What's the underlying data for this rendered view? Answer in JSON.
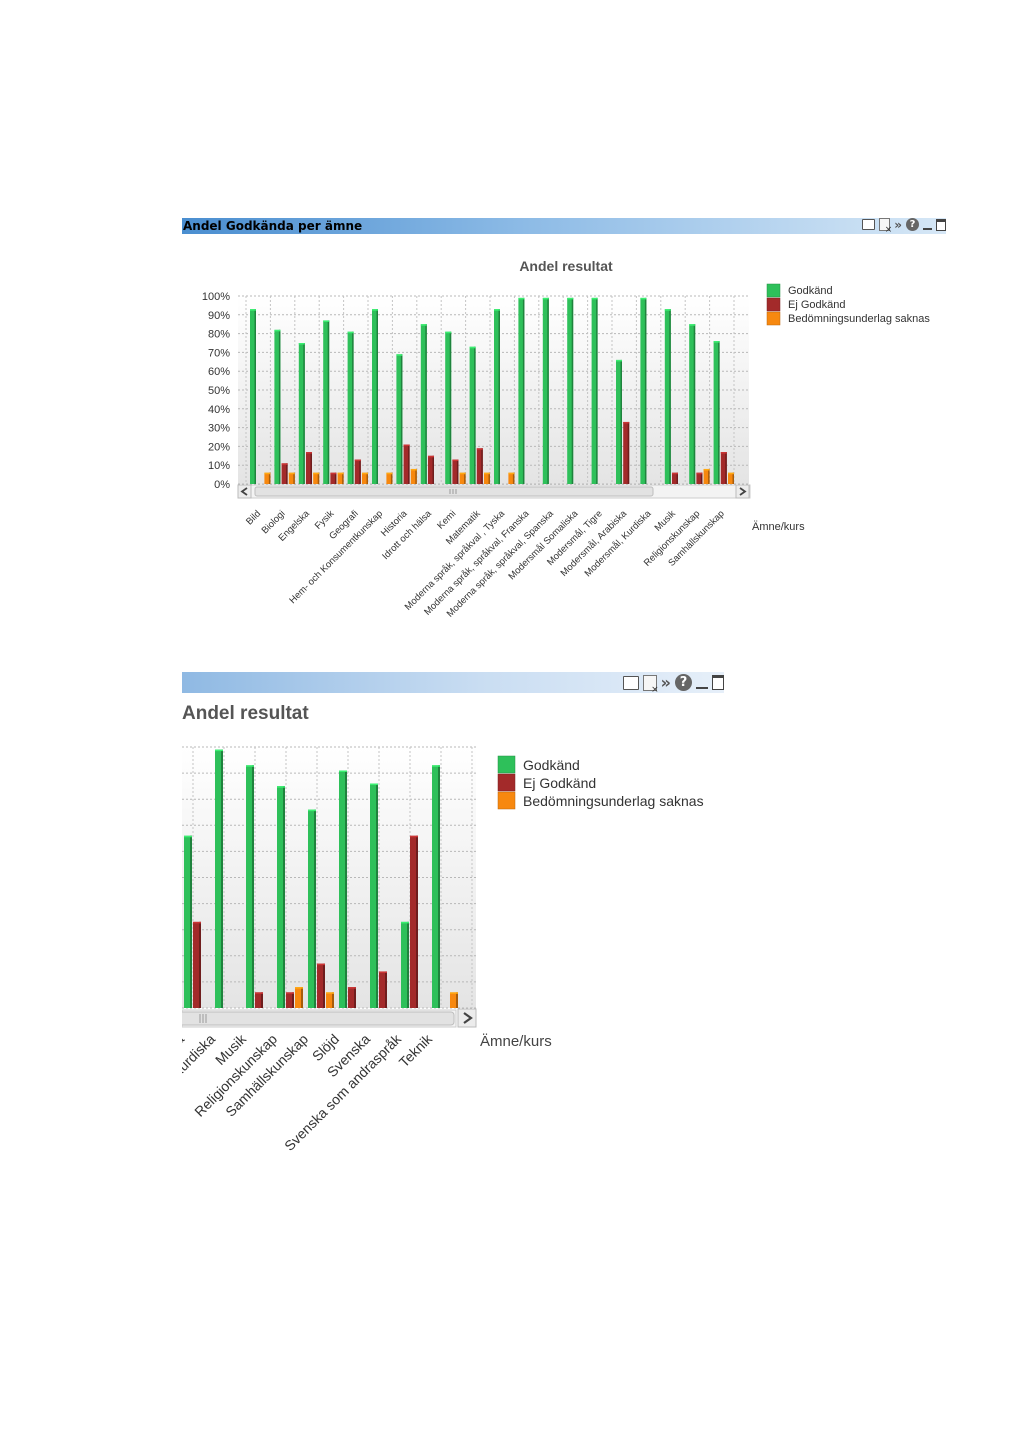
{
  "panel1": {
    "caption": "Andel Godkända per ämne",
    "chart_title": "Andel resultat",
    "xlabel": "Ämne/kurs"
  },
  "panel2": {
    "chart_title": "Andel resultat",
    "xlabel": "Ämne/kurs"
  },
  "icons": [
    "print-icon",
    "clear-selection-icon",
    "more-icon",
    "help-icon",
    "minimize-icon",
    "maximize-icon"
  ],
  "chart_data": [
    {
      "type": "bar",
      "title": "Andel resultat",
      "xlabel": "Ämne/kurs",
      "ylabel": "",
      "ylim": [
        0,
        100
      ],
      "yticks": [
        "0%",
        "10%",
        "20%",
        "30%",
        "40%",
        "50%",
        "60%",
        "70%",
        "80%",
        "90%",
        "100%"
      ],
      "grid": true,
      "legend_position": "right",
      "colors": [
        "#2ec05a",
        "#a32a2a",
        "#f7880f"
      ],
      "categories": [
        "Bild",
        "Biologi",
        "Engelska",
        "Fysik",
        "Geografi",
        "Hem- och Konsumentkunskap",
        "Historia",
        "Idrott och hälsa",
        "Kemi",
        "Matematik",
        "Moderna språk, språkval , Tyska",
        "Moderna språk, språkval, Franska",
        "Moderna språk, språkval, Spanska",
        "Modersmål Somaliska",
        "Modersmål, Tigre",
        "Modersmål, Arabiska",
        "Modersmål, Kurdiska",
        "Musik",
        "Religionskunskap",
        "Samhällskunskap"
      ],
      "series": [
        {
          "name": "Godkänd",
          "values": [
            93,
            82,
            75,
            87,
            81,
            93,
            69,
            85,
            81,
            73,
            93,
            99,
            99,
            99,
            99,
            66,
            99,
            93,
            85,
            76
          ]
        },
        {
          "name": "Ej Godkänd",
          "values": [
            0,
            11,
            17,
            6,
            13,
            0,
            21,
            15,
            13,
            19,
            0,
            0,
            0,
            0,
            0,
            33,
            0,
            6,
            6,
            17
          ]
        },
        {
          "name": "Bedömningsunderlag saknas",
          "values": [
            6,
            6,
            6,
            6,
            6,
            6,
            8,
            0,
            6,
            6,
            6,
            0,
            0,
            0,
            0,
            0,
            0,
            0,
            8,
            6
          ]
        }
      ]
    },
    {
      "type": "bar",
      "title": "Andel resultat",
      "xlabel": "Ämne/kurs",
      "ylabel": "",
      "ylim": [
        0,
        100
      ],
      "grid": true,
      "legend_position": "right",
      "colors": [
        "#2ec05a",
        "#a32a2a",
        "#f7880f"
      ],
      "categories": [
        "ka",
        "Kurdiska",
        "Musik",
        "Religionskunskap",
        "Samhällskunskap",
        "Slöjd",
        "Svenska",
        "Svenska som andraspråk",
        "Teknik"
      ],
      "series": [
        {
          "name": "Godkänd",
          "values": [
            66,
            99,
            93,
            85,
            76,
            91,
            86,
            33,
            93
          ]
        },
        {
          "name": "Ej Godkänd",
          "values": [
            33,
            0,
            6,
            6,
            17,
            8,
            14,
            66,
            0
          ]
        },
        {
          "name": "Bedömningsunderlag saknas",
          "values": [
            0,
            0,
            0,
            8,
            6,
            0,
            0,
            0,
            6
          ]
        }
      ]
    }
  ]
}
